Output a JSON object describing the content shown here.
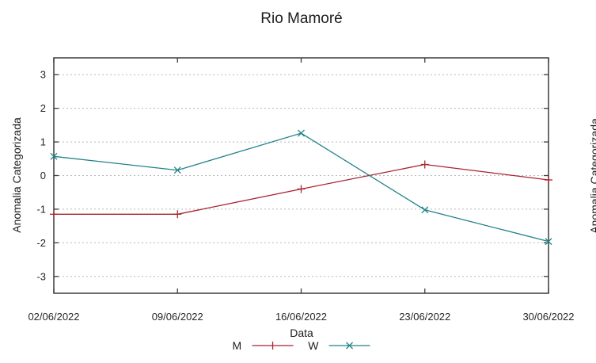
{
  "chart_data": {
    "type": "line",
    "title": "Rio Mamoré",
    "xlabel": "Data",
    "ylabel": "Anomalia Categorizada",
    "categories": [
      "02/06/2022",
      "09/06/2022",
      "16/06/2022",
      "23/06/2022",
      "30/06/2022"
    ],
    "series": [
      {
        "name": "M",
        "color": "#a8232e",
        "marker": "plus",
        "values": [
          -1.15,
          -1.15,
          -0.4,
          0.33,
          -0.13
        ]
      },
      {
        "name": "W",
        "color": "#1f8287",
        "marker": "cross",
        "values": [
          0.57,
          0.16,
          1.26,
          -1.02,
          -1.96
        ]
      }
    ],
    "ylim": [
      -3.5,
      3.5
    ],
    "yticks": [
      3,
      2,
      1,
      0,
      -1,
      -2,
      -3
    ],
    "grid": "horizontal-dashed",
    "grid_color": "#b8b8b8",
    "axis_color": "#3c3c3c",
    "legend_position": "bottom-center"
  },
  "adjacent_chart": {
    "ylabel": "Anomalia Categorizada"
  }
}
